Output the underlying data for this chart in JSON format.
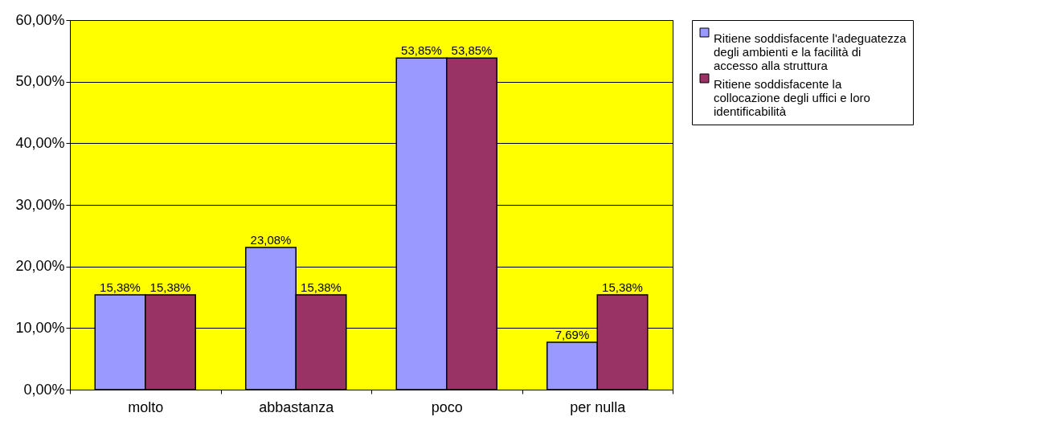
{
  "chart_data": {
    "type": "bar",
    "categories": [
      "molto",
      "abbastanza",
      "poco",
      "per nulla"
    ],
    "series": [
      {
        "name": "Ritiene soddisfacente l'adeguatezza degli ambienti e la facilità di accesso alla struttura",
        "color": "#9999ff",
        "values": [
          15.38,
          23.08,
          53.85,
          7.69
        ],
        "value_labels": [
          "15,38%",
          "23,08%",
          "53,85%",
          "7,69%"
        ]
      },
      {
        "name": "Ritiene soddisfacente la collocazione degli uffici e loro identificabilità",
        "color": "#993366",
        "values": [
          15.38,
          15.38,
          53.85,
          15.38
        ],
        "value_labels": [
          "15,38%",
          "15,38%",
          "53,85%",
          "15,38%"
        ]
      }
    ],
    "ylim": [
      0,
      60
    ],
    "yticks": [
      {
        "value": 0,
        "label": "0,00%"
      },
      {
        "value": 10,
        "label": "10,00%"
      },
      {
        "value": 20,
        "label": "20,00%"
      },
      {
        "value": 30,
        "label": "30,00%"
      },
      {
        "value": 40,
        "label": "40,00%"
      },
      {
        "value": 50,
        "label": "50,00%"
      },
      {
        "value": 60,
        "label": "60,00%"
      }
    ],
    "grid": "y",
    "legend": "right"
  }
}
